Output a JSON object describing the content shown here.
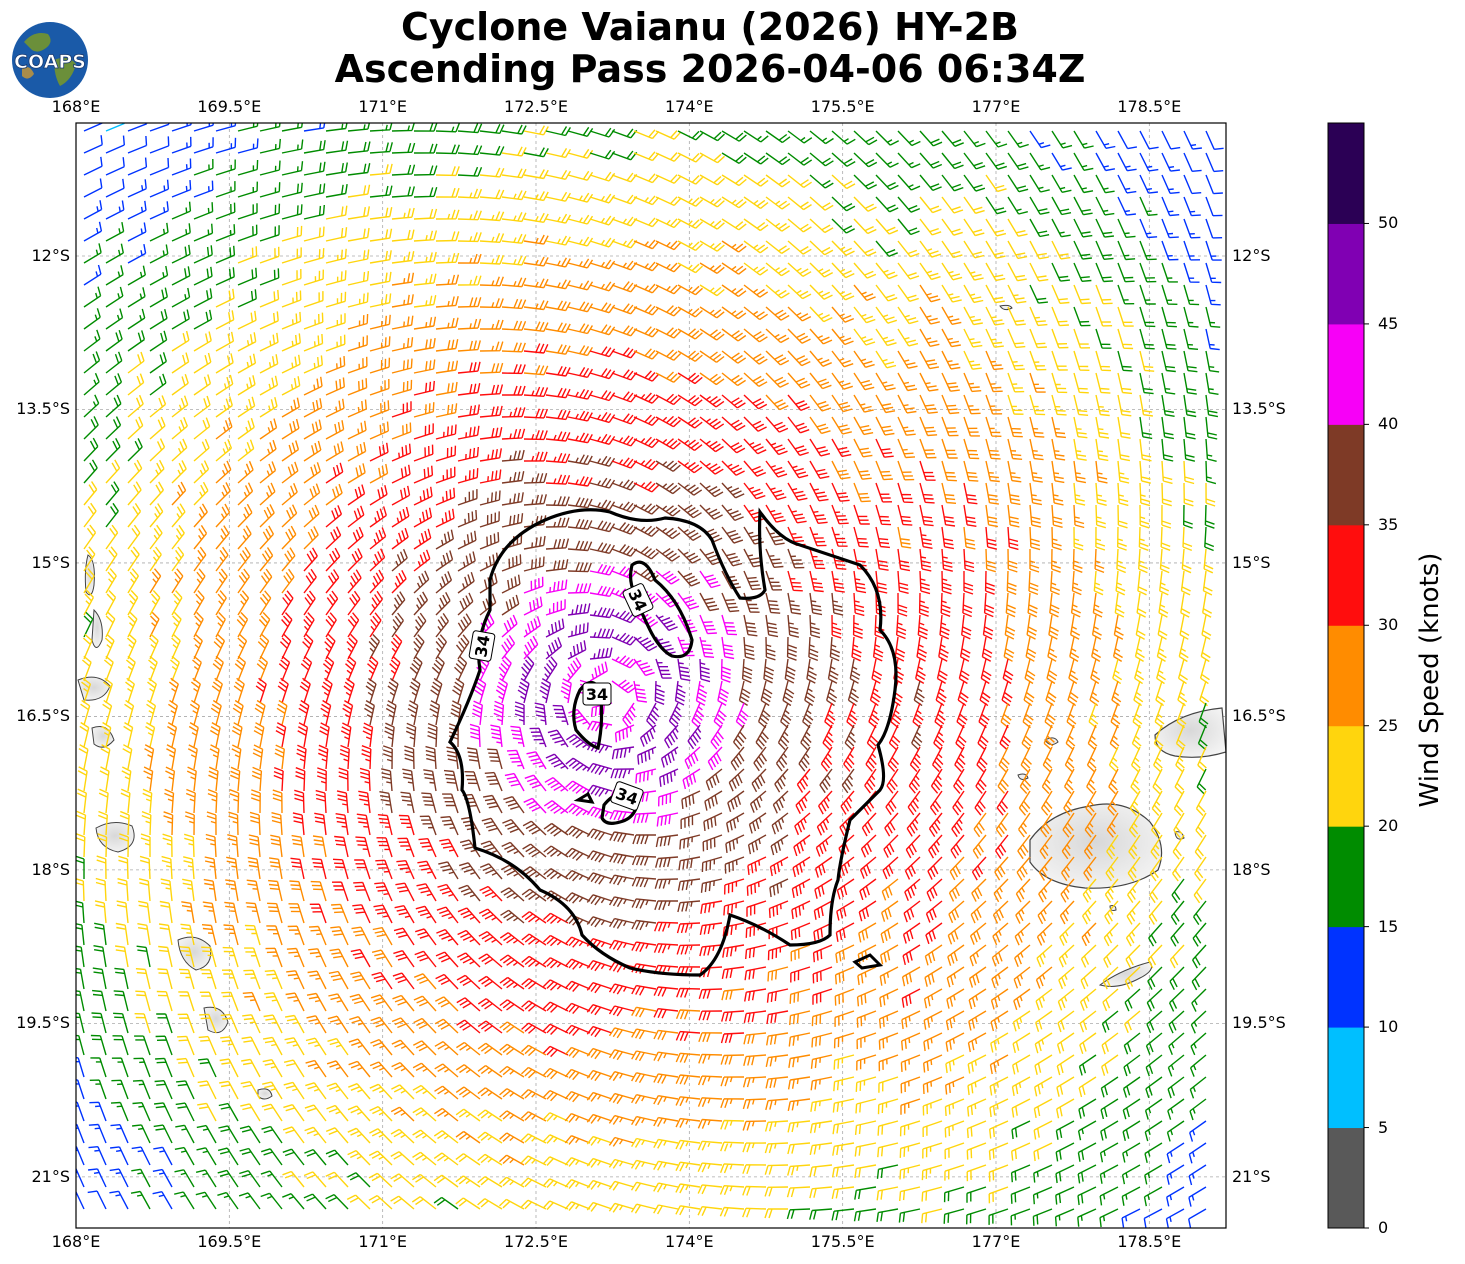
{
  "title": {
    "line1": "Cyclone Vaianu (2026) HY-2B",
    "line2": "Ascending Pass 2026-04-06 06:34Z"
  },
  "logo": {
    "text": "COAPS",
    "icon": "globe-logo-icon"
  },
  "map": {
    "lon_range": [
      168.0,
      179.25
    ],
    "lat_range": [
      -21.5,
      -10.7
    ],
    "lon_ticks": [
      "168°E",
      "169.5°E",
      "171°E",
      "172.5°E",
      "174°E",
      "175.5°E",
      "177°E",
      "178.5°E"
    ],
    "lat_ticks": [
      "12°S",
      "13.5°S",
      "15°S",
      "16.5°S",
      "18°S",
      "19.5°S",
      "21°S"
    ],
    "grid": true,
    "storm_center": {
      "lon": 173.2,
      "lat": -16.3
    },
    "contour_label": "34",
    "contour_value_knots": 34
  },
  "colorbar": {
    "title": "Wind Speed (knots)",
    "ticks": [
      "0",
      "5",
      "10",
      "15",
      "20",
      "25",
      "30",
      "35",
      "40",
      "45",
      "50"
    ],
    "colors": [
      "#595959",
      "#00bfff",
      "#0033ff",
      "#008c00",
      "#ffd50d",
      "#ff8c00",
      "#ff0d0d",
      "#7e3a26",
      "#f700f7",
      "#8000b3",
      "#2b0055"
    ]
  }
}
